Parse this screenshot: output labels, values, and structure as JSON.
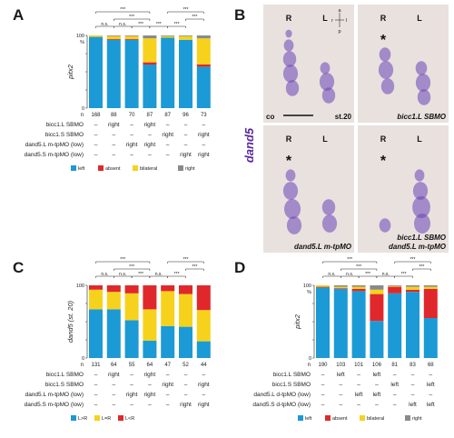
{
  "colors": {
    "blue": "#1b9ad6",
    "red": "#e0282c",
    "yellow": "#f6d21c",
    "gray": "#8a8a8a",
    "photo_bg": "#e9e1de",
    "stain": "#6a43b6"
  },
  "panels": {
    "A": {
      "letter": "A"
    },
    "B": {
      "letter": "B",
      "stain_label": "dand5",
      "orientation": {
        "a": "a",
        "l": "l",
        "r": "r",
        "p": "p"
      },
      "images": [
        {
          "R": "R",
          "L": "L",
          "star": "",
          "caption_lines": [],
          "corner_left": "co",
          "corner_right": "st.20"
        },
        {
          "R": "R",
          "L": "L",
          "star": "*",
          "caption_lines": [
            "bicc1.L SBMO"
          ],
          "corner_left": "",
          "corner_right": ""
        },
        {
          "R": "R",
          "L": "L",
          "star": "*",
          "caption_lines": [
            "dand5.L m-tpMO"
          ],
          "corner_left": "",
          "corner_right": ""
        },
        {
          "R": "R",
          "L": "L",
          "star": "*",
          "caption_lines": [
            "bicc1.L SBMO",
            "dand5.L m-tpMO"
          ],
          "corner_left": "",
          "corner_right": ""
        }
      ]
    },
    "C": {
      "letter": "C"
    },
    "D": {
      "letter": "D"
    }
  },
  "chart_data": [
    {
      "panel": "A",
      "type": "bar",
      "stacked": true,
      "ylabel": "pitx2",
      "yunit": "%",
      "yticks": [
        0,
        25,
        50,
        75,
        100
      ],
      "ylim": [
        0,
        100
      ],
      "n_prefix": "n",
      "n": [
        "168",
        "88",
        "70",
        "87",
        "87",
        "96",
        "73"
      ],
      "series": [
        {
          "name": "left",
          "color": "#1b9ad6",
          "values": [
            98,
            94,
            94,
            60,
            97,
            94,
            57
          ]
        },
        {
          "name": "absent",
          "color": "#e0282c",
          "values": [
            0,
            1,
            1,
            3,
            0,
            0,
            3
          ]
        },
        {
          "name": "bilateral",
          "color": "#f6d21c",
          "values": [
            2,
            4,
            4,
            33,
            2,
            5,
            36
          ]
        },
        {
          "name": "right",
          "color": "#8a8a8a",
          "values": [
            0,
            1,
            1,
            4,
            1,
            1,
            4
          ]
        }
      ],
      "rows": [
        {
          "label": "bicc1.L SBMO",
          "cells": [
            "–",
            "right",
            "–",
            "right",
            "–",
            "–",
            "–"
          ]
        },
        {
          "label": "bicc1.S SBMO",
          "cells": [
            "–",
            "–",
            "–",
            "–",
            "right",
            "–",
            "right"
          ]
        },
        {
          "label": "dand5.L m-tpMO (low)",
          "cells": [
            "–",
            "–",
            "right",
            "right",
            "–",
            "–",
            "–"
          ]
        },
        {
          "label": "dand5.S m-tpMO (low)",
          "cells": [
            "–",
            "–",
            "–",
            "–",
            "–",
            "right",
            "right"
          ]
        }
      ],
      "significance": [
        {
          "from": 0,
          "to": 3,
          "level": 1,
          "text": "***"
        },
        {
          "from": 1,
          "to": 3,
          "level": 2,
          "text": "***"
        },
        {
          "from": 2,
          "to": 3,
          "level": 3,
          "text": "***"
        },
        {
          "from": 0,
          "to": 1,
          "level": 3,
          "text": "n.s."
        },
        {
          "from": 1,
          "to": 2,
          "level": 3,
          "text": "n.s."
        },
        {
          "from": 4,
          "to": 6,
          "level": 1,
          "text": "***"
        },
        {
          "from": 5,
          "to": 6,
          "level": 2,
          "text": "***"
        },
        {
          "from": 3,
          "to": 4,
          "level": 3,
          "text": "***"
        },
        {
          "from": 4,
          "to": 5,
          "level": 3,
          "text": "***"
        }
      ],
      "legend": [
        "left",
        "absent",
        "bilateral",
        "right"
      ]
    },
    {
      "panel": "C",
      "type": "bar",
      "stacked": true,
      "ylabel": "dand5 (st. 20)",
      "yunit": "",
      "yticks": [
        0,
        25,
        50,
        75,
        100
      ],
      "ylim": [
        0,
        100
      ],
      "n_prefix": "n",
      "n": [
        "131",
        "64",
        "55",
        "64",
        "47",
        "52",
        "44"
      ],
      "series": [
        {
          "name": "L>R",
          "color": "#1b9ad6",
          "values": [
            67,
            67,
            52,
            24,
            44,
            43,
            23
          ]
        },
        {
          "name": "L=R",
          "color": "#f6d21c",
          "values": [
            27,
            24,
            37,
            43,
            48,
            45,
            43
          ]
        },
        {
          "name": "L<R",
          "color": "#e0282c",
          "values": [
            6,
            9,
            11,
            33,
            8,
            12,
            34
          ]
        }
      ],
      "rows": [
        {
          "label": "bicc1.L SBMO",
          "cells": [
            "–",
            "right",
            "–",
            "right",
            "–",
            "–",
            "–"
          ]
        },
        {
          "label": "bicc1.S SBMO",
          "cells": [
            "–",
            "–",
            "–",
            "–",
            "right",
            "–",
            "right"
          ]
        },
        {
          "label": "dand5.L m-tpMO (low)",
          "cells": [
            "–",
            "–",
            "right",
            "right",
            "–",
            "–",
            "–"
          ]
        },
        {
          "label": "dand5.S m-tpMO (low)",
          "cells": [
            "–",
            "–",
            "–",
            "–",
            "–",
            "right",
            "right"
          ]
        }
      ],
      "significance": [
        {
          "from": 0,
          "to": 3,
          "level": 1,
          "text": "***"
        },
        {
          "from": 1,
          "to": 3,
          "level": 2,
          "text": "***"
        },
        {
          "from": 2,
          "to": 3,
          "level": 3,
          "text": "***"
        },
        {
          "from": 0,
          "to": 1,
          "level": 3,
          "text": "n.s."
        },
        {
          "from": 1,
          "to": 2,
          "level": 3,
          "text": "n.s."
        },
        {
          "from": 4,
          "to": 6,
          "level": 1,
          "text": "***"
        },
        {
          "from": 5,
          "to": 6,
          "level": 2,
          "text": "***"
        },
        {
          "from": 3,
          "to": 4,
          "level": 3,
          "text": "n.s."
        },
        {
          "from": 4,
          "to": 5,
          "level": 3,
          "text": "***"
        }
      ],
      "legend": [
        "L>R",
        "L=R",
        "L<R"
      ]
    },
    {
      "panel": "D",
      "type": "bar",
      "stacked": true,
      "ylabel": "pitx2",
      "yunit": "%",
      "yticks": [
        0,
        25,
        50,
        75,
        100
      ],
      "ylim": [
        0,
        100
      ],
      "n_prefix": "n",
      "n": [
        "190",
        "103",
        "101",
        "106",
        "81",
        "83",
        "68"
      ],
      "series": [
        {
          "name": "left",
          "color": "#1b9ad6",
          "values": [
            97,
            95,
            92,
            51,
            89,
            91,
            55
          ]
        },
        {
          "name": "absent",
          "color": "#e0282c",
          "values": [
            1,
            1,
            3,
            37,
            9,
            3,
            40
          ]
        },
        {
          "name": "bilateral",
          "color": "#f6d21c",
          "values": [
            2,
            2,
            3,
            6,
            1,
            4,
            3
          ]
        },
        {
          "name": "right",
          "color": "#8a8a8a",
          "values": [
            0,
            2,
            2,
            6,
            1,
            2,
            2
          ]
        }
      ],
      "rows": [
        {
          "label": "bicc1.L SBMO",
          "cells": [
            "–",
            "left",
            "–",
            "left",
            "–",
            "–",
            "–"
          ]
        },
        {
          "label": "bicc1.S SBMO",
          "cells": [
            "–",
            "–",
            "–",
            "–",
            "left",
            "–",
            "left"
          ]
        },
        {
          "label": "dand5.L d-tpMO (low)",
          "cells": [
            "–",
            "–",
            "left",
            "left",
            "–",
            "–",
            "–"
          ]
        },
        {
          "label": "dand5.S d-tpMO (low)",
          "cells": [
            "–",
            "–",
            "–",
            "–",
            "–",
            "left",
            "left"
          ]
        }
      ],
      "significance": [
        {
          "from": 0,
          "to": 3,
          "level": 1,
          "text": "***"
        },
        {
          "from": 1,
          "to": 3,
          "level": 2,
          "text": "***"
        },
        {
          "from": 2,
          "to": 3,
          "level": 3,
          "text": "***"
        },
        {
          "from": 0,
          "to": 1,
          "level": 3,
          "text": "n.s."
        },
        {
          "from": 1,
          "to": 2,
          "level": 3,
          "text": "n.s."
        },
        {
          "from": 4,
          "to": 6,
          "level": 1,
          "text": "***"
        },
        {
          "from": 5,
          "to": 6,
          "level": 2,
          "text": "***"
        },
        {
          "from": 3,
          "to": 4,
          "level": 3,
          "text": "n.s."
        },
        {
          "from": 4,
          "to": 5,
          "level": 3,
          "text": "***"
        }
      ],
      "legend": [
        "left",
        "absent",
        "bilateral",
        "right"
      ]
    }
  ]
}
